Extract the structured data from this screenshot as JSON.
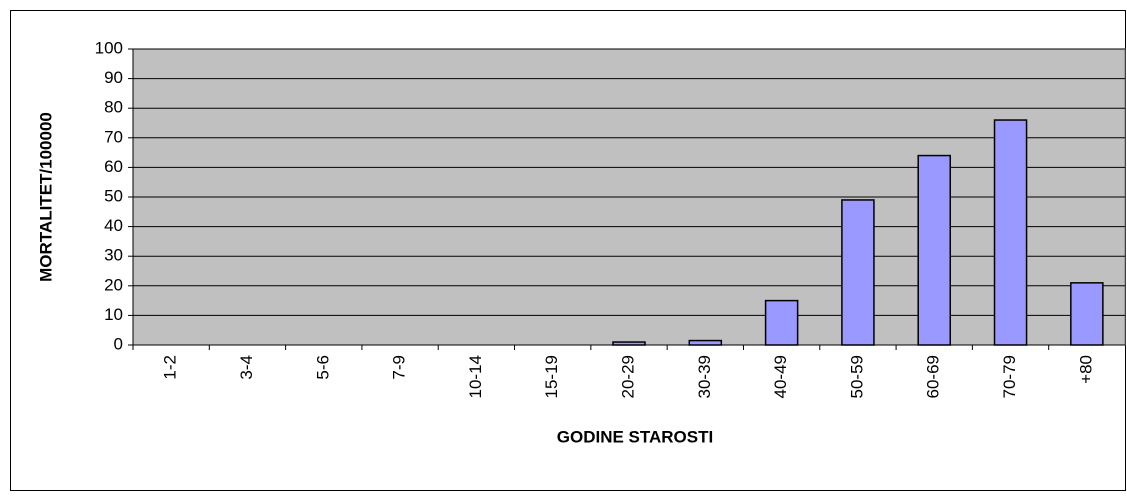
{
  "chart_data": {
    "type": "bar",
    "x_label": "GODINE STAROSTI",
    "y_label": "MORTALITET/100000",
    "categories": [
      "1-2",
      "3-4",
      "5-6",
      "7-9",
      "10-14",
      "15-19",
      "20-29",
      "30-39",
      "40-49",
      "50-59",
      "60-69",
      "70-79",
      "+80"
    ],
    "values": [
      0,
      0,
      0,
      0,
      0,
      0,
      1,
      1.5,
      15,
      49,
      64,
      76,
      21
    ],
    "color": "#9999ff",
    "ylim": [
      0,
      100
    ],
    "yticks": [
      0,
      10,
      20,
      30,
      40,
      50,
      60,
      70,
      80,
      90,
      100
    ],
    "grid": true
  }
}
